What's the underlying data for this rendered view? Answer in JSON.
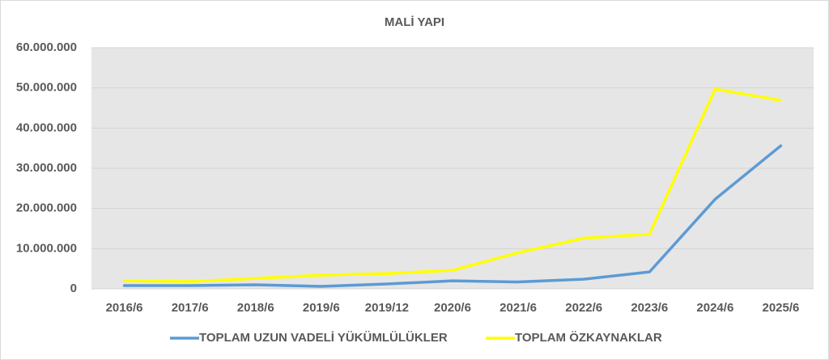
{
  "chart_data": {
    "type": "line",
    "title": "MALİ YAPI",
    "categories": [
      "2016/6",
      "2017/6",
      "2018/6",
      "2019/6",
      "2019/12",
      "2020/6",
      "2021/6",
      "2022/6",
      "2023/6",
      "2024/6",
      "2025/6"
    ],
    "series": [
      {
        "name": "TOPLAM UZUN VADELİ YÜKÜMLÜLÜKLER",
        "color": "#5b9bd5",
        "values": [
          800000,
          800000,
          1000000,
          600000,
          1200000,
          2000000,
          1700000,
          2400000,
          4200000,
          22300000,
          35600000
        ]
      },
      {
        "name": "TOPLAM ÖZKAYNAKLAR",
        "color": "#ffff00",
        "values": [
          2000000,
          1800000,
          2600000,
          3400000,
          3800000,
          4600000,
          9000000,
          12600000,
          13600000,
          49700000,
          46900000
        ]
      }
    ],
    "ylim": [
      0,
      60000000
    ],
    "yticks": [
      0,
      {
        "value": 10000000,
        "label": "10.000.000"
      },
      {
        "value": 20000000,
        "label": "20.000.000"
      },
      {
        "value": 30000000,
        "label": "30.000.000"
      },
      {
        "value": 40000000,
        "label": "40.000.000"
      },
      {
        "value": 50000000,
        "label": "50.000.000"
      },
      {
        "value": 60000000,
        "label": "60.000.000"
      }
    ],
    "grid": true,
    "legend": "bottom"
  }
}
